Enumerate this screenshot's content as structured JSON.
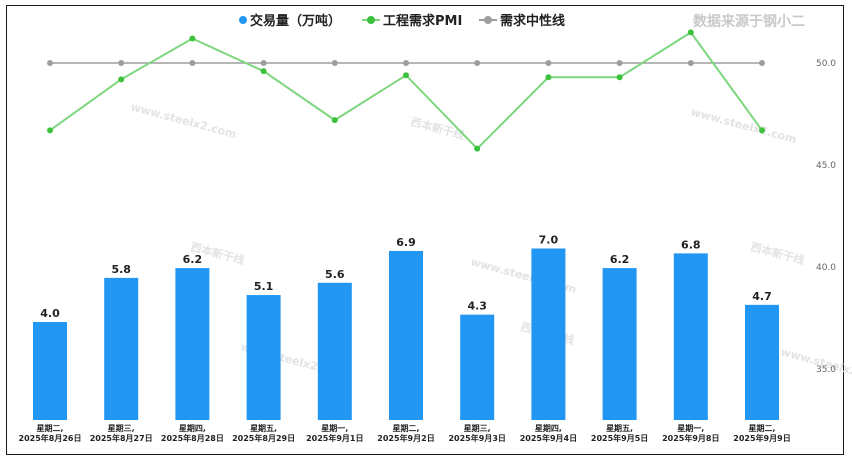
{
  "watermark": "数据来源于钢小二",
  "bg_watermarks": [
    "www.steelx2.com",
    "西本新干线"
  ],
  "chart_data": {
    "type": "bar",
    "categories": [
      [
        "星期二,",
        "2025年8月26日"
      ],
      [
        "星期三,",
        "2025年8月27日"
      ],
      [
        "星期四,",
        "2025年8月28日"
      ],
      [
        "星期五,",
        "2025年8月29日"
      ],
      [
        "星期一,",
        "2025年9月1日"
      ],
      [
        "星期二,",
        "2025年9月2日"
      ],
      [
        "星期三,",
        "2025年9月3日"
      ],
      [
        "星期四,",
        "2025年9月4日"
      ],
      [
        "星期五,",
        "2025年9月5日"
      ],
      [
        "星期一,",
        "2025年9月8日"
      ],
      [
        "星期二,",
        "2025年9月9日"
      ]
    ],
    "series": [
      {
        "name": "交易量（万吨）",
        "kind": "bar",
        "color": "#2196f3",
        "values": [
          4.0,
          5.8,
          6.2,
          5.1,
          5.6,
          6.9,
          4.3,
          7.0,
          6.2,
          6.8,
          4.7
        ],
        "labels": [
          "4.0",
          "5.8",
          "6.2",
          "5.1",
          "5.6",
          "6.9",
          "4.3",
          "7.0",
          "6.2",
          "6.8",
          "4.7"
        ]
      },
      {
        "name": "工程需求PMI",
        "kind": "line",
        "color": "#7ed67e",
        "marker_color": "#3cc13c",
        "values": [
          46.7,
          49.2,
          51.2,
          49.6,
          47.2,
          49.4,
          45.8,
          49.3,
          49.3,
          51.5,
          46.7
        ]
      },
      {
        "name": "需求中性线",
        "kind": "line",
        "color": "#9e9e9e",
        "marker_color": "#9e9e9e",
        "values": [
          50,
          50,
          50,
          50,
          50,
          50,
          50,
          50,
          50,
          50,
          50
        ]
      }
    ],
    "y_right": {
      "ticks": [
        "35.0",
        "40.0",
        "45.0",
        "50.0"
      ],
      "range": [
        32.5,
        52.5
      ]
    },
    "legend_position": "top-center",
    "grid": false
  }
}
